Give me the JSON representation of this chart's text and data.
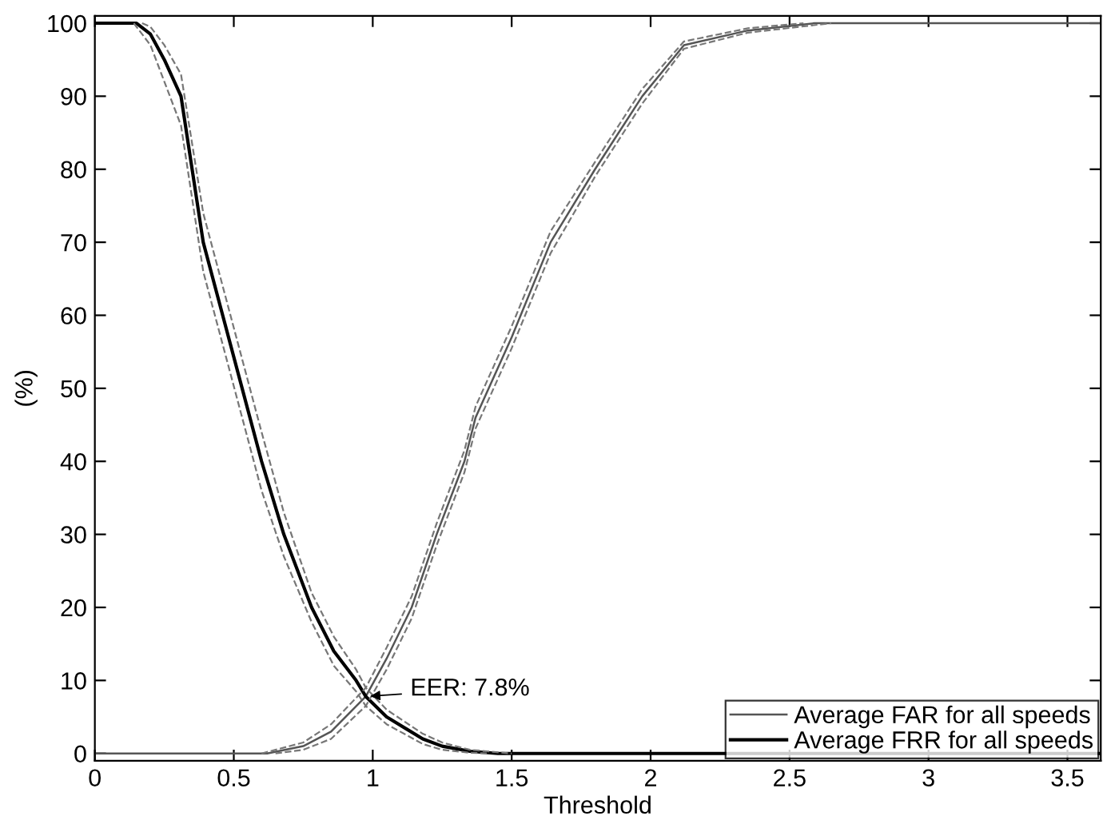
{
  "chart_data": {
    "type": "line",
    "xlabel": "Threshold",
    "ylabel": "(%)",
    "xlim": [
      0,
      3.62
    ],
    "ylim": [
      -1,
      101
    ],
    "xticks": [
      0,
      0.5,
      1,
      1.5,
      2,
      2.5,
      3,
      3.5
    ],
    "yticks": [
      0,
      10,
      20,
      30,
      40,
      50,
      60,
      70,
      80,
      90,
      100
    ],
    "grid": false,
    "legend": "bottom right",
    "marker": "none",
    "annotations": [
      {
        "text": "EER: 7.8%",
        "x": 0.975,
        "y": 7.8
      }
    ],
    "series": [
      {
        "name": "Average FAR for all speeds",
        "color": "#555555",
        "line_style": "solid",
        "x": [
          0,
          0.62,
          0.75,
          0.85,
          0.975,
          1.05,
          1.14,
          1.23,
          1.33,
          1.37,
          1.5,
          1.64,
          1.8,
          1.97,
          2.12,
          2.35,
          2.59,
          3.62
        ],
        "values": [
          0,
          0,
          1,
          3,
          7.8,
          13,
          20,
          30,
          40,
          46,
          57,
          70,
          80,
          90,
          97,
          99,
          100,
          100
        ]
      },
      {
        "name": "Average FRR for all speeds",
        "color": "#000000",
        "line_style": "solid",
        "x": [
          0,
          0.15,
          0.2,
          0.25,
          0.31,
          0.39,
          0.46,
          0.53,
          0.6,
          0.68,
          0.78,
          0.86,
          0.94,
          0.975,
          1.05,
          1.18,
          1.25,
          1.35,
          1.45,
          3.62
        ],
        "values": [
          100,
          100,
          98.5,
          95,
          90,
          70,
          60,
          50,
          40,
          30,
          20,
          14,
          10,
          7.8,
          5,
          2,
          1,
          0.3,
          0,
          0
        ]
      },
      {
        "color": "#777777",
        "line_style": "dashed",
        "x": [
          0.65,
          0.75,
          0.85,
          0.975,
          1.05,
          1.14,
          1.23,
          1.33,
          1.37,
          1.5,
          1.64,
          1.8,
          1.97,
          2.12,
          2.35,
          2.65
        ],
        "values": [
          0,
          0.5,
          2,
          6.5,
          11.5,
          18.5,
          28.5,
          38.5,
          44.5,
          55.5,
          68.5,
          79,
          89,
          96.5,
          98.7,
          100
        ]
      },
      {
        "color": "#777777",
        "line_style": "dashed",
        "x": [
          0.6,
          0.75,
          0.85,
          0.975,
          1.05,
          1.14,
          1.23,
          1.33,
          1.37,
          1.5,
          1.64,
          1.8,
          1.97,
          2.12,
          2.35,
          2.55
        ],
        "values": [
          0,
          1.5,
          4,
          9,
          14.5,
          21.5,
          31.5,
          41.5,
          47.5,
          58.5,
          71.5,
          81,
          91,
          97.5,
          99.3,
          100
        ]
      },
      {
        "color": "#777777",
        "line_style": "dashed",
        "x": [
          0.14,
          0.2,
          0.25,
          0.31,
          0.39,
          0.46,
          0.53,
          0.6,
          0.68,
          0.78,
          0.86,
          0.94,
          0.975,
          1.05,
          1.18,
          1.25,
          1.35,
          1.42
        ],
        "values": [
          100,
          97,
          92,
          86,
          66,
          56,
          46,
          36,
          27,
          18,
          12,
          8.5,
          6.5,
          4,
          1.3,
          0.5,
          0.1,
          0
        ]
      },
      {
        "color": "#777777",
        "line_style": "dashed",
        "x": [
          0.17,
          0.2,
          0.25,
          0.31,
          0.39,
          0.46,
          0.53,
          0.6,
          0.68,
          0.78,
          0.86,
          0.94,
          0.975,
          1.05,
          1.18,
          1.25,
          1.35,
          1.5
        ],
        "values": [
          100,
          99.5,
          97,
          93,
          74,
          64,
          54,
          44,
          33,
          22,
          16,
          11.5,
          9,
          6,
          2.7,
          1.5,
          0.5,
          0
        ]
      }
    ]
  }
}
